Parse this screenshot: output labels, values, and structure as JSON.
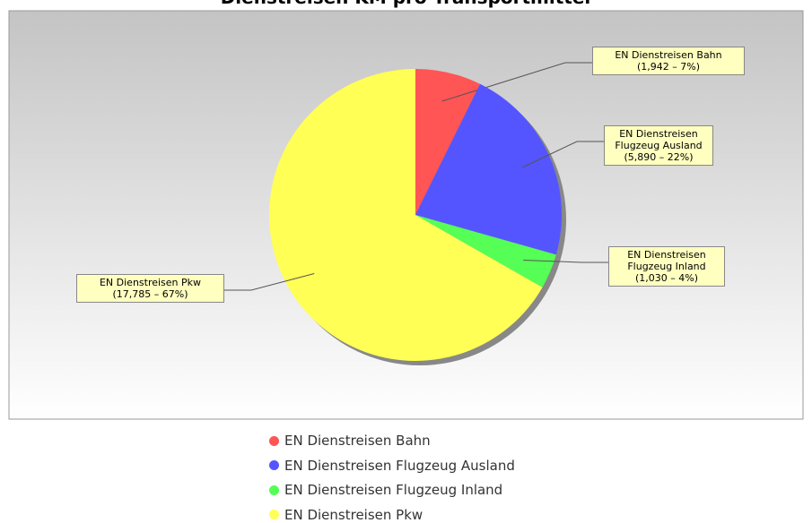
{
  "chart_data": {
    "type": "pie",
    "title": "Dienstreisen KM pro Transportmittel",
    "categories": [
      "EN Dienstreisen Bahn",
      "EN Dienstreisen Flugzeug Ausland",
      "EN Dienstreisen Flugzeug Inland",
      "EN Dienstreisen Pkw"
    ],
    "values": [
      1942,
      5890,
      1030,
      17785
    ],
    "value_labels": [
      "(1,942 – 7%)",
      "(5,890 – 22%)",
      "(1,030 – 4%)",
      "(17,785 – 67%)"
    ],
    "colors": [
      "#ff5555",
      "#5555ff",
      "#55ff55",
      "#ffff55"
    ]
  }
}
